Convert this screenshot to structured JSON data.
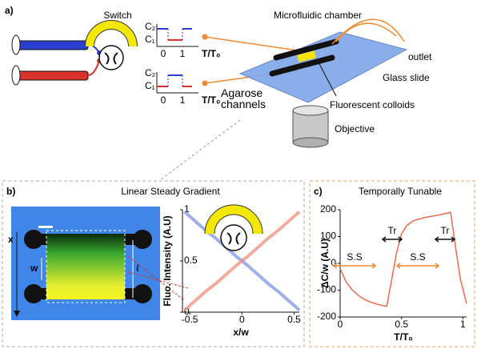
{
  "panel_labels": [
    "a)",
    "b)",
    "c)"
  ],
  "setup": {
    "switch": "Switch",
    "waveforms": [
      {
        "c2": "C₂",
        "c1": "C₁",
        "t0": "0",
        "t1": "1",
        "axis": "T/T₀"
      },
      {
        "c2": "C₂",
        "c1": "C₁",
        "t0": "0",
        "t1": "1",
        "axis": "T/T₀"
      }
    ],
    "labels": [
      "Microfluidic chamber",
      "outlet",
      "Glass slide",
      "Agarose channels",
      "Fluorescent colloids",
      "Objective"
    ]
  },
  "gradient_image": {
    "x_label": "x",
    "w_label": "w",
    "l_label": "ℓ"
  },
  "chart_data": [
    {
      "type": "line",
      "title": "Linear Steady Gradient",
      "x_label": "x/w",
      "y_label": "Fluo. Intensity (A.U)",
      "x": [
        -0.55,
        -0.45,
        -0.35,
        -0.25,
        -0.15,
        -0.05,
        0.05,
        0.15,
        0.25,
        0.35,
        0.45,
        0.55
      ],
      "series": [
        {
          "color": "#7f93e6",
          "values": [
            0.98,
            0.89,
            0.8,
            0.72,
            0.63,
            0.54,
            0.46,
            0.37,
            0.28,
            0.2,
            0.11,
            0.02
          ]
        },
        {
          "color": "#ef8f80",
          "values": [
            0.02,
            0.11,
            0.2,
            0.28,
            0.37,
            0.46,
            0.54,
            0.63,
            0.72,
            0.8,
            0.89,
            0.98
          ]
        }
      ],
      "xlim": [
        -0.57,
        0.55
      ],
      "xticks": [
        -0.5,
        0,
        0.5
      ],
      "ylim": [
        0,
        1
      ],
      "yticks": [
        0,
        0.5,
        1
      ]
    },
    {
      "type": "line",
      "title": "Temporally Tunable",
      "x_label": "T/T₀",
      "y_label": "ΔC/w (A.U)",
      "x": [
        0,
        0.05,
        0.1,
        0.15,
        0.2,
        0.25,
        0.3,
        0.35,
        0.38,
        0.42,
        0.46,
        0.5,
        0.54,
        0.6,
        0.7,
        0.8,
        0.88,
        0.9,
        0.94,
        0.98,
        1.03
      ],
      "series": [
        {
          "color": "#f0684a",
          "values": [
            -20,
            -70,
            -100,
            -120,
            -135,
            -145,
            -152,
            -158,
            -160,
            -60,
            40,
            110,
            140,
            160,
            172,
            180,
            188,
            190,
            60,
            -60,
            -150
          ]
        }
      ],
      "xlim": [
        0,
        1.03
      ],
      "xticks": [
        0,
        0.5,
        1
      ],
      "ylim": [
        -200,
        200
      ],
      "yticks": [
        -200,
        -100,
        0,
        100,
        200
      ],
      "annotations": [
        "Tr",
        "Tr",
        "S.S",
        "S.S"
      ]
    }
  ]
}
